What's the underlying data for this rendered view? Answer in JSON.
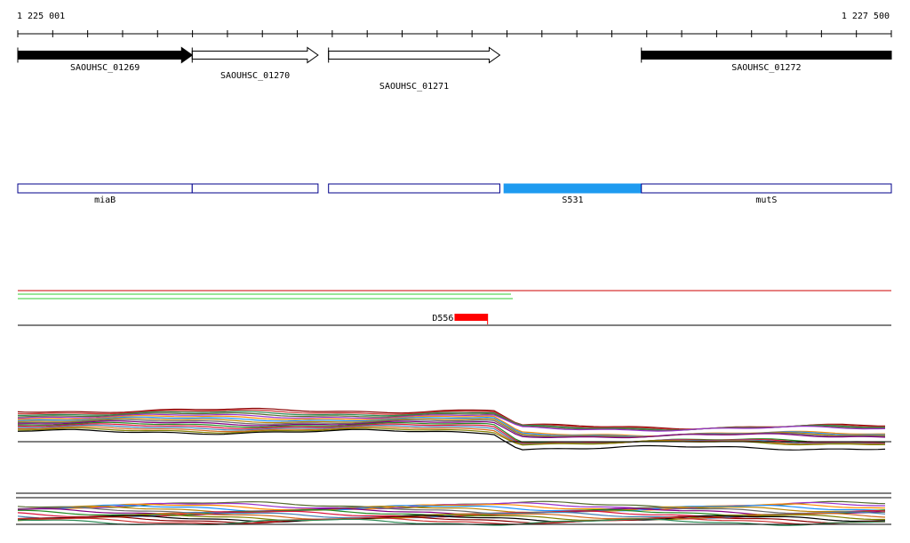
{
  "ruler": {
    "start_label": "1 225 001",
    "end_label": "1 227 500",
    "start": 1225001,
    "end": 1227500
  },
  "genes": [
    {
      "name": "SAOUHSC_01269",
      "start": 1225001,
      "end": 1225500,
      "strand": "+",
      "filled": true
    },
    {
      "name": "SAOUHSC_01270",
      "start": 1225500,
      "end": 1225860,
      "strand": "+",
      "filled": false
    },
    {
      "name": "SAOUHSC_01271",
      "start": 1225890,
      "end": 1226380,
      "strand": "+",
      "filled": false
    },
    {
      "name": "SAOUHSC_01272",
      "start": 1226785,
      "end": 1227500,
      "strand": "+",
      "filled": true
    }
  ],
  "annotations": [
    {
      "name": "miaB",
      "start": 1225001,
      "end": 1225500,
      "highlight": false
    },
    {
      "name": "",
      "start": 1225500,
      "end": 1225860,
      "highlight": false
    },
    {
      "name": "",
      "start": 1225890,
      "end": 1226380,
      "highlight": false
    },
    {
      "name": "S531",
      "start": 1226392,
      "end": 1226785,
      "highlight": true
    },
    {
      "name": "mutS",
      "start": 1226785,
      "end": 1227500,
      "highlight": false
    }
  ],
  "feature": {
    "label": "D556",
    "start": 1226225,
    "end": 1226345,
    "color": "#ff0000"
  },
  "colors": {
    "gene_fill": "#000000",
    "annotation_border": "#00008b",
    "annotation_highlight": "#1e9bf0",
    "red_line": "#cc0000",
    "green_line": "#33cc33"
  }
}
